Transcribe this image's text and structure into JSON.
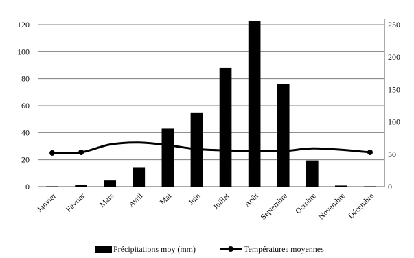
{
  "chart_data": {
    "type": "bar",
    "categories": [
      "Janvier",
      "Fevrier",
      "Mars",
      "Avril",
      "Mai",
      "Juin",
      "Juillet",
      "Août",
      "Septembre",
      "Octobre",
      "Novembre",
      "Décembre"
    ],
    "series": [
      {
        "name": "Précipitations moy (mm)",
        "kind": "bar",
        "axis": "left",
        "values": [
          0.3,
          1.2,
          4.5,
          14,
          43,
          55,
          88,
          123,
          76,
          19.5,
          0.8,
          0.3
        ]
      },
      {
        "name": "Températures moyennes",
        "kind": "line",
        "axis": "right",
        "values": [
          52,
          53,
          65,
          68,
          64,
          58,
          56,
          55,
          55,
          59,
          57,
          53
        ]
      }
    ],
    "y_left": {
      "min": 0,
      "max": 120,
      "ticks": [
        0,
        20,
        40,
        60,
        80,
        100,
        120
      ]
    },
    "y_right": {
      "min": 0,
      "max": 250,
      "ticks": [
        0,
        50,
        100,
        150,
        200,
        250
      ]
    },
    "grid": true,
    "legend_position": "bottom",
    "colors": {
      "bars": "#000000",
      "line": "#000000",
      "grid": "#7f7f7f"
    }
  }
}
